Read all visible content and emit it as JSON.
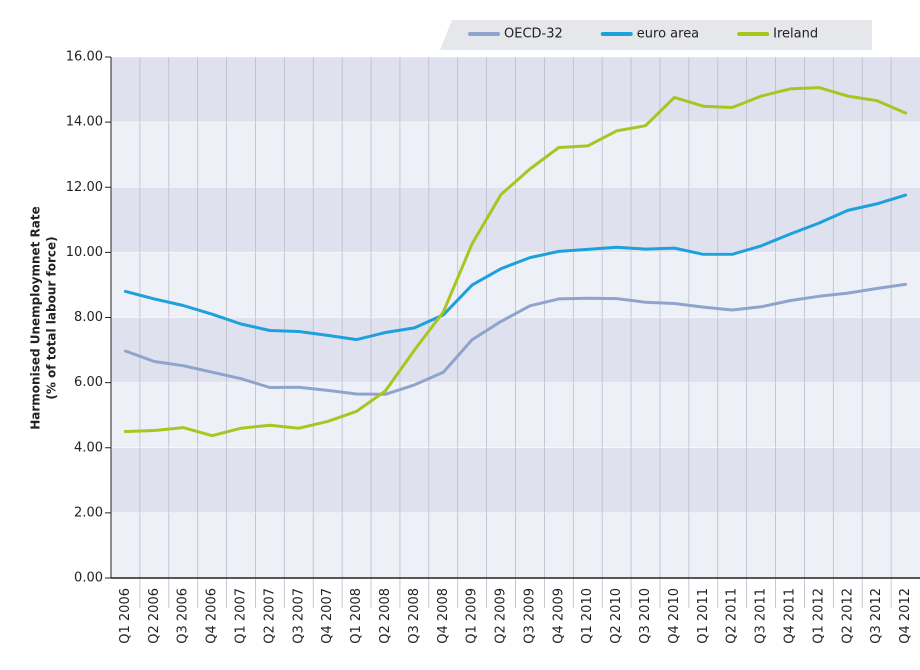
{
  "chart_data": {
    "type": "line",
    "ylabel": [
      "Harmonised Unemploymnet Rate",
      "(% of total labour force)"
    ],
    "categories": [
      "Q1 2006",
      "Q2 2006",
      "Q3 2006",
      "Q4 2006",
      "Q1 2007",
      "Q2 2007",
      "Q3 2007",
      "Q4 2007",
      "Q1 2008",
      "Q2 2008",
      "Q3 2008",
      "Q4 2008",
      "Q1 2009",
      "Q2 2009",
      "Q3 2009",
      "Q4 2009",
      "Q1 2010",
      "Q2 2010",
      "Q3 2010",
      "Q4 2010",
      "Q1 2011",
      "Q2 2011",
      "Q3 2011",
      "Q4 2011",
      "Q1 2012",
      "Q2 2012",
      "Q3 2012",
      "Q4 2012"
    ],
    "series": [
      {
        "name": "OECD-32",
        "color": "#8fa4cc",
        "values": [
          6.97,
          6.65,
          6.52,
          6.32,
          6.12,
          5.85,
          5.86,
          5.76,
          5.65,
          5.64,
          5.93,
          6.32,
          7.32,
          7.88,
          8.36,
          8.57,
          8.59,
          8.58,
          8.47,
          8.43,
          8.32,
          8.23,
          8.33,
          8.52,
          8.65,
          8.75,
          8.89,
          9.02
        ]
      },
      {
        "name": "euro area",
        "color": "#1da0dc",
        "values": [
          8.8,
          8.57,
          8.37,
          8.1,
          7.8,
          7.6,
          7.57,
          7.45,
          7.32,
          7.54,
          7.68,
          8.08,
          9.0,
          9.5,
          9.84,
          10.03,
          10.09,
          10.16,
          10.1,
          10.13,
          9.94,
          9.94,
          10.2,
          10.56,
          10.9,
          11.29,
          11.49,
          11.76
        ]
      },
      {
        "name": "Ireland",
        "color": "#a8c520",
        "values": [
          4.5,
          4.53,
          4.62,
          4.37,
          4.6,
          4.69,
          4.6,
          4.81,
          5.12,
          5.75,
          7.0,
          8.17,
          10.27,
          11.78,
          12.56,
          13.22,
          13.27,
          13.73,
          13.89,
          14.76,
          14.49,
          14.45,
          14.8,
          15.02,
          15.06,
          14.8,
          14.66,
          14.28
        ]
      }
    ],
    "ylim": [
      0,
      16
    ],
    "yticks": [
      {
        "value": 0,
        "label": "0.00"
      },
      {
        "value": 2,
        "label": "2.00"
      },
      {
        "value": 4,
        "label": "4.00"
      },
      {
        "value": 6,
        "label": "6.00"
      },
      {
        "value": 8,
        "label": "8.00"
      },
      {
        "value": 10,
        "label": "10.00"
      },
      {
        "value": 12,
        "label": "12.00"
      },
      {
        "value": 14,
        "label": "14.00"
      },
      {
        "value": 16,
        "label": "16.00"
      }
    ],
    "grid": true,
    "legend": "top-right"
  }
}
